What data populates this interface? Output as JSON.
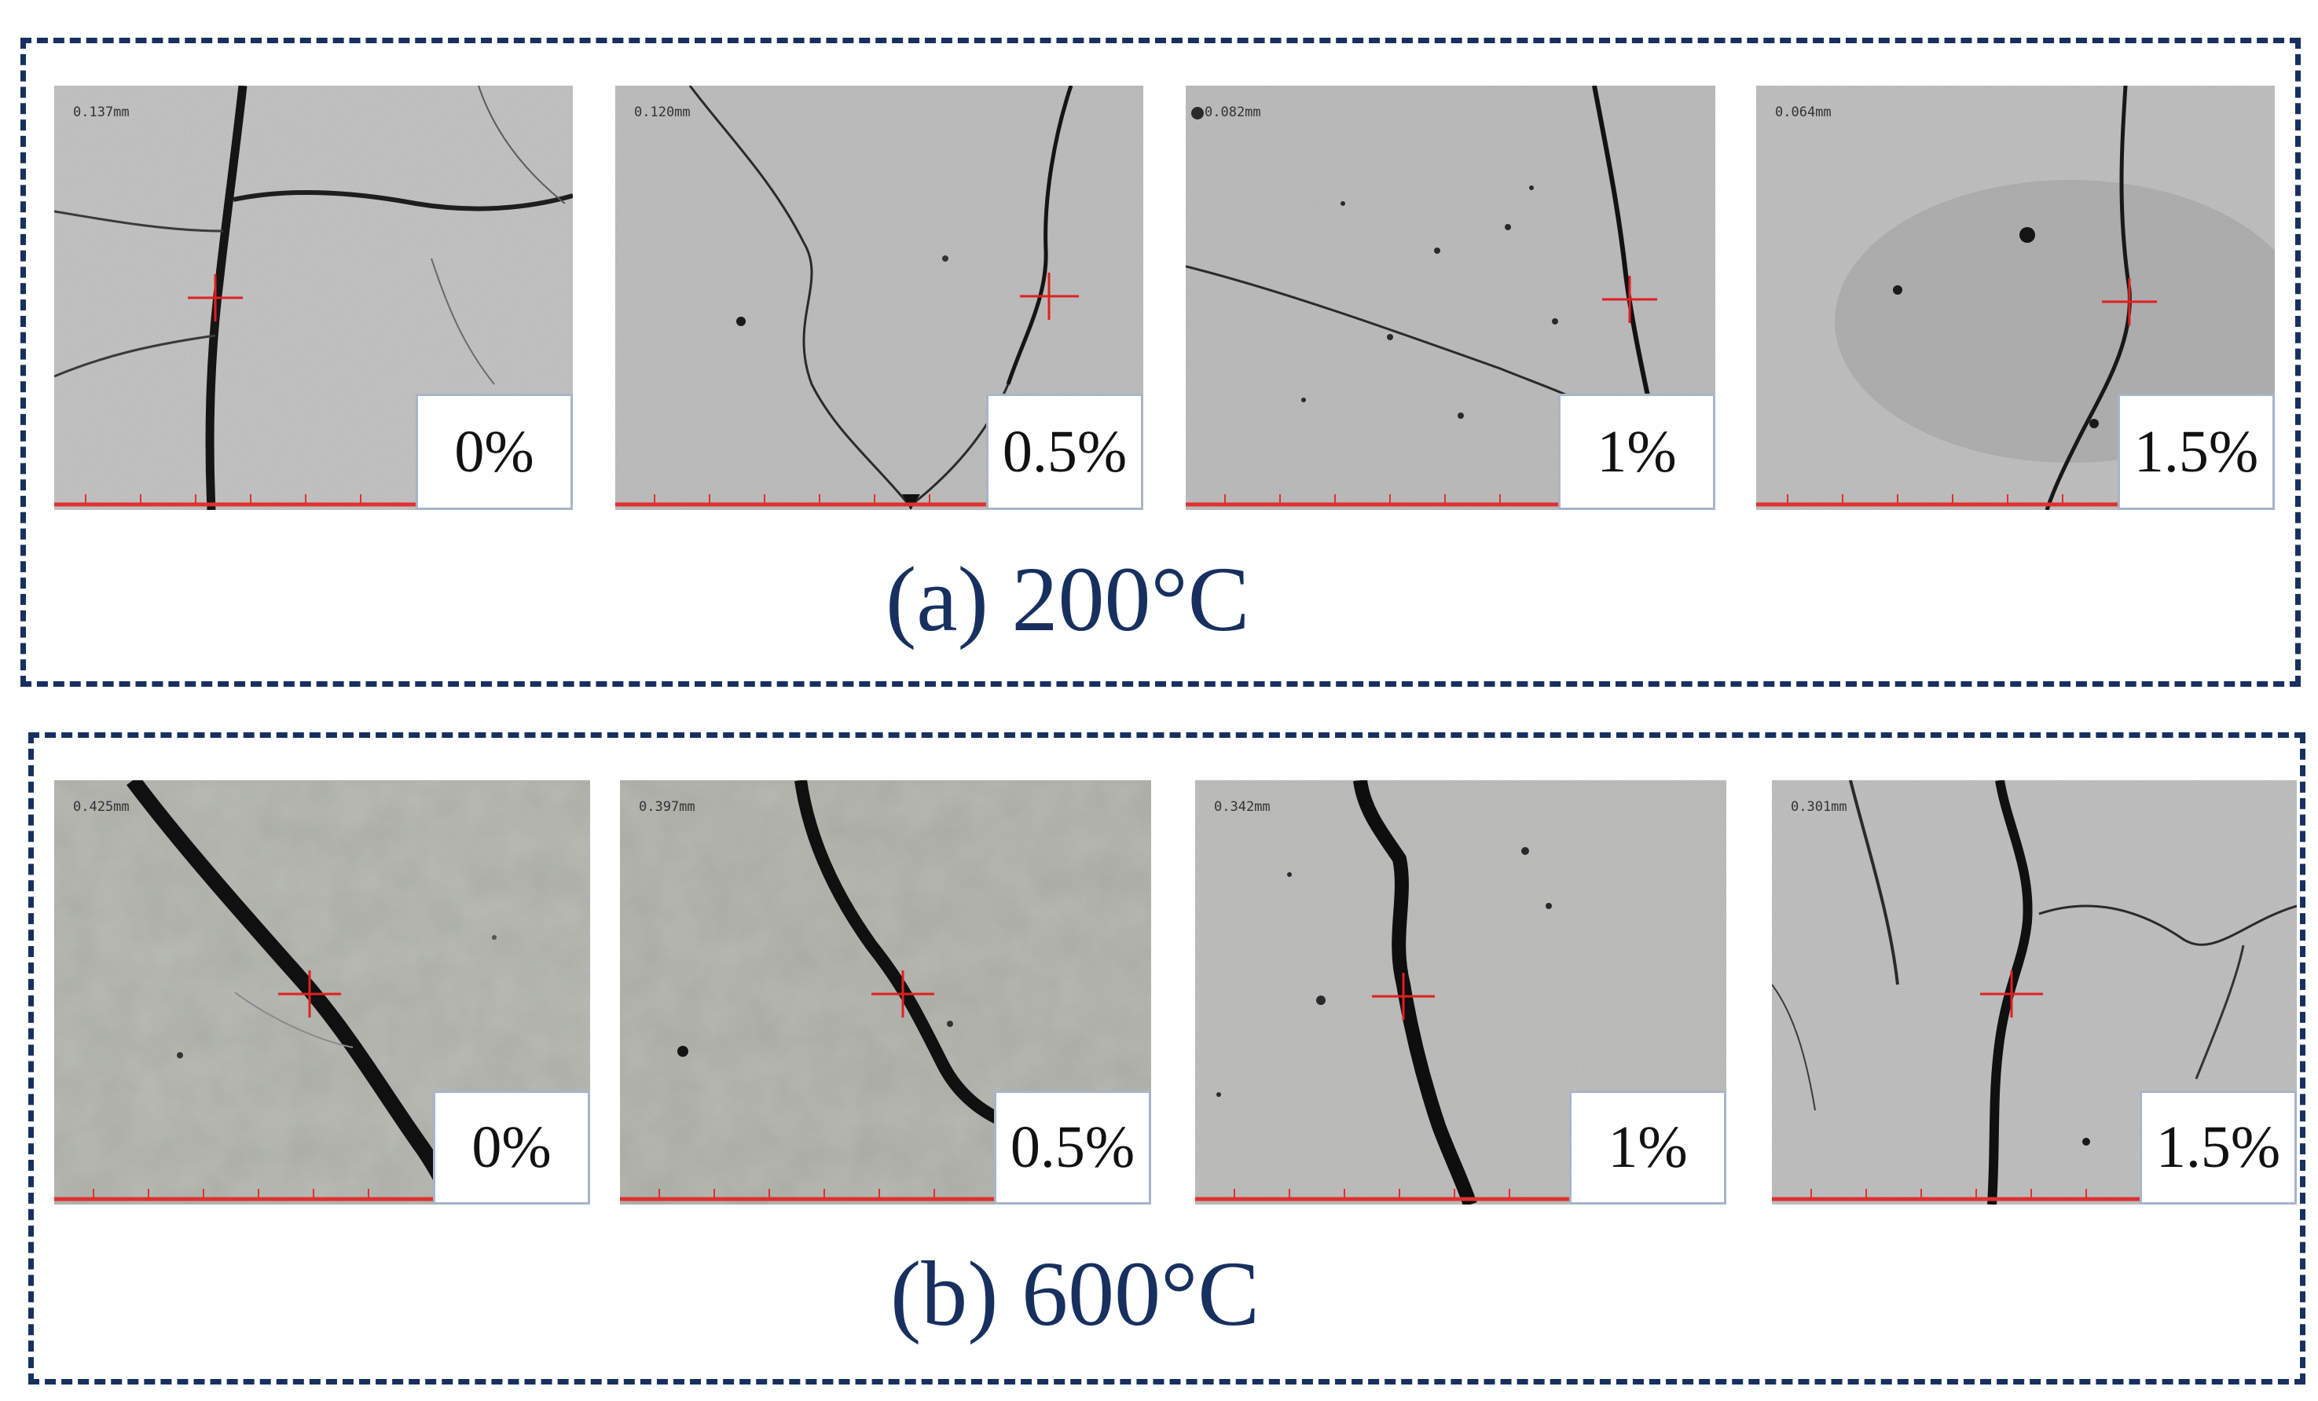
{
  "colors": {
    "border": "#17305f",
    "caption": "#17305f",
    "crosshair": "#e02020",
    "scale_bar": "#e03030"
  },
  "groups": [
    {
      "caption": "(a) 200°C",
      "panels": [
        {
          "label": "0%",
          "scale_readout": "0.137mm"
        },
        {
          "label": "0.5%",
          "scale_readout": "0.120mm"
        },
        {
          "label": "1%",
          "scale_readout": "0.082mm"
        },
        {
          "label": "1.5%",
          "scale_readout": "0.064mm"
        }
      ]
    },
    {
      "caption": "(b) 600°C",
      "panels": [
        {
          "label": "0%",
          "scale_readout": "0.425mm"
        },
        {
          "label": "0.5%",
          "scale_readout": "0.397mm"
        },
        {
          "label": "1%",
          "scale_readout": "0.342mm"
        },
        {
          "label": "1.5%",
          "scale_readout": "0.301mm"
        }
      ]
    }
  ]
}
